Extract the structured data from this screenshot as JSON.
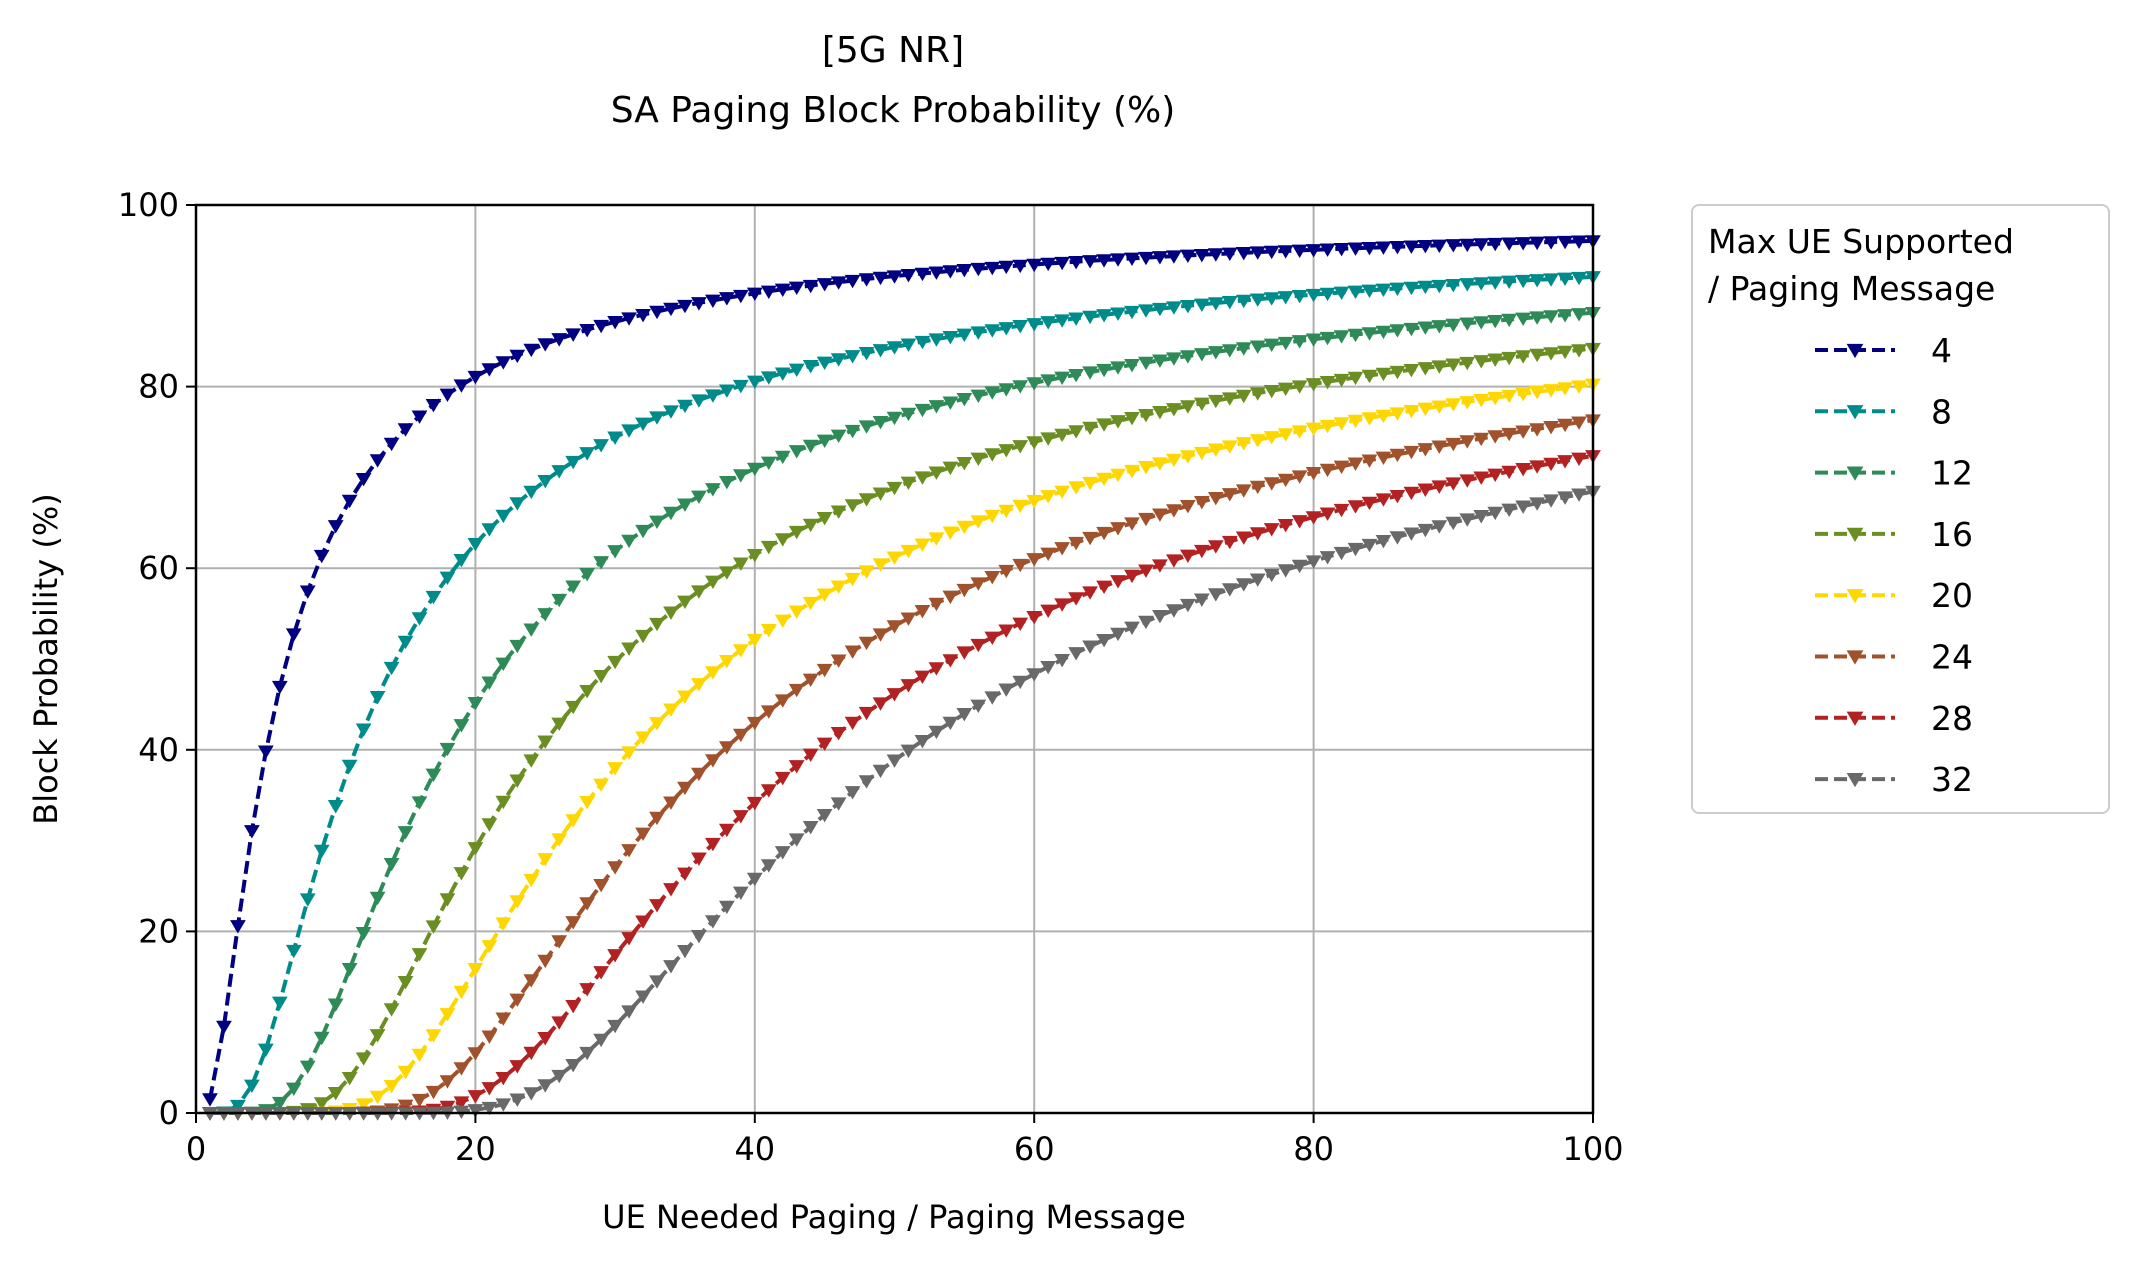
{
  "chart_data": {
    "type": "line",
    "title": "[5G NR]",
    "subtitle": "SA Paging Block Probability (%)",
    "xlabel": "UE Needed Paging / Paging Message",
    "ylabel": "Block Probability (%)",
    "xlim": [
      0,
      100
    ],
    "ylim": [
      0,
      100
    ],
    "x_ticks": [
      "0",
      "20",
      "40",
      "60",
      "80",
      "100"
    ],
    "y_ticks": [
      "0",
      "20",
      "40",
      "60",
      "80",
      "100"
    ],
    "grid": true,
    "legend": {
      "title_line1": "Max UE Supported",
      "title_line2": "/ Paging Message",
      "placement": "outside-right"
    },
    "x_range": [
      1,
      100
    ],
    "series": [
      {
        "name": "4",
        "color": "#000080",
        "capacity": 4
      },
      {
        "name": "8",
        "color": "#008b8b",
        "capacity": 8
      },
      {
        "name": "12",
        "color": "#2e8b57",
        "capacity": 12
      },
      {
        "name": "16",
        "color": "#6b8e23",
        "capacity": 16
      },
      {
        "name": "20",
        "color": "#ffd700",
        "capacity": 20
      },
      {
        "name": "24",
        "color": "#a0522d",
        "capacity": 24
      },
      {
        "name": "28",
        "color": "#b22222",
        "capacity": 28
      },
      {
        "name": "32",
        "color": "#696969",
        "capacity": 32
      }
    ],
    "line_style": "dashed",
    "marker": "triangle-down",
    "model": "Erlang B blocking probability: B(E, N) with offered load E = x and N = capacity"
  }
}
